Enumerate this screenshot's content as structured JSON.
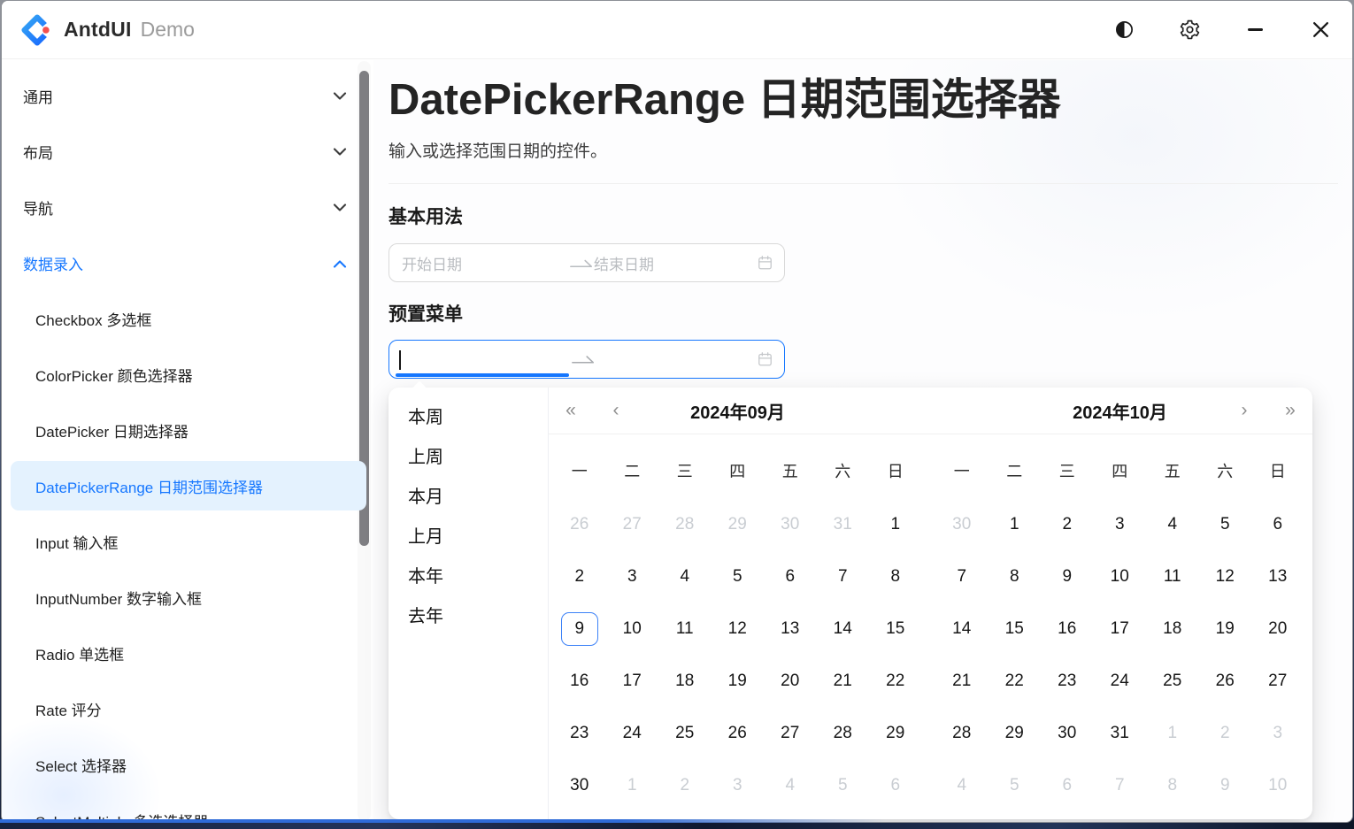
{
  "titlebar": {
    "app": "AntdUI",
    "mode": "Demo",
    "icons": {
      "theme_toggle": "◐",
      "settings": "⚙",
      "minimize": "—",
      "close": "✕"
    }
  },
  "sidebar": {
    "sections": [
      {
        "type": "group",
        "label": "通用",
        "state": "collapsed"
      },
      {
        "type": "group",
        "label": "布局",
        "state": "collapsed"
      },
      {
        "type": "group",
        "label": "导航",
        "state": "collapsed"
      },
      {
        "type": "group",
        "label": "数据录入",
        "state": "expanded",
        "active": true
      },
      {
        "type": "item",
        "label": "Checkbox 多选框"
      },
      {
        "type": "item",
        "label": "ColorPicker 颜色选择器"
      },
      {
        "type": "item",
        "label": "DatePicker 日期选择器"
      },
      {
        "type": "item",
        "label": "DatePickerRange 日期范围选择器",
        "active": true
      },
      {
        "type": "item",
        "label": "Input 输入框"
      },
      {
        "type": "item",
        "label": "InputNumber 数字输入框"
      },
      {
        "type": "item",
        "label": "Radio 单选框"
      },
      {
        "type": "item",
        "label": "Rate 评分"
      },
      {
        "type": "item",
        "label": "Select 选择器"
      },
      {
        "type": "item",
        "label": "SelectMultiple 多选选择器"
      }
    ]
  },
  "page": {
    "title": "DatePickerRange 日期范围选择器",
    "subtitle": "输入或选择范围日期的控件。",
    "section_basic": "基本用法",
    "section_preset": "预置菜单"
  },
  "basic_input": {
    "value": "",
    "start_placeholder": "开始日期",
    "end_placeholder": "结束日期"
  },
  "preset_input": {
    "value": "",
    "focused": true,
    "active_segment": "start"
  },
  "presets": [
    "本周",
    "上周",
    "本月",
    "上月",
    "本年",
    "去年"
  ],
  "calendar": {
    "nav": {
      "prev_year": "«",
      "prev_month": "‹",
      "next_month": "›",
      "next_year": "»"
    },
    "weekdays": [
      "一",
      "二",
      "三",
      "四",
      "五",
      "六",
      "日"
    ],
    "months": [
      {
        "title": "2024年09月",
        "rows": [
          [
            {
              "day": 26,
              "outside": true
            },
            {
              "day": 27,
              "outside": true
            },
            {
              "day": 28,
              "outside": true
            },
            {
              "day": 29,
              "outside": true
            },
            {
              "day": 30,
              "outside": true
            },
            {
              "day": 31,
              "outside": true
            },
            {
              "day": 1
            }
          ],
          [
            {
              "day": 2
            },
            {
              "day": 3
            },
            {
              "day": 4
            },
            {
              "day": 5
            },
            {
              "day": 6
            },
            {
              "day": 7
            },
            {
              "day": 8
            }
          ],
          [
            {
              "day": 9,
              "today": true
            },
            {
              "day": 10
            },
            {
              "day": 11
            },
            {
              "day": 12
            },
            {
              "day": 13
            },
            {
              "day": 14
            },
            {
              "day": 15
            }
          ],
          [
            {
              "day": 16
            },
            {
              "day": 17
            },
            {
              "day": 18
            },
            {
              "day": 19
            },
            {
              "day": 20
            },
            {
              "day": 21
            },
            {
              "day": 22
            }
          ],
          [
            {
              "day": 23
            },
            {
              "day": 24
            },
            {
              "day": 25
            },
            {
              "day": 26
            },
            {
              "day": 27
            },
            {
              "day": 28
            },
            {
              "day": 29
            }
          ],
          [
            {
              "day": 30
            },
            {
              "day": 1,
              "outside": true
            },
            {
              "day": 2,
              "outside": true
            },
            {
              "day": 3,
              "outside": true
            },
            {
              "day": 4,
              "outside": true
            },
            {
              "day": 5,
              "outside": true
            },
            {
              "day": 6,
              "outside": true
            }
          ]
        ]
      },
      {
        "title": "2024年10月",
        "rows": [
          [
            {
              "day": 30,
              "outside": true
            },
            {
              "day": 1
            },
            {
              "day": 2
            },
            {
              "day": 3
            },
            {
              "day": 4
            },
            {
              "day": 5
            },
            {
              "day": 6
            }
          ],
          [
            {
              "day": 7
            },
            {
              "day": 8
            },
            {
              "day": 9
            },
            {
              "day": 10
            },
            {
              "day": 11
            },
            {
              "day": 12
            },
            {
              "day": 13
            }
          ],
          [
            {
              "day": 14
            },
            {
              "day": 15
            },
            {
              "day": 16
            },
            {
              "day": 17
            },
            {
              "day": 18
            },
            {
              "day": 19
            },
            {
              "day": 20
            }
          ],
          [
            {
              "day": 21
            },
            {
              "day": 22
            },
            {
              "day": 23
            },
            {
              "day": 24
            },
            {
              "day": 25
            },
            {
              "day": 26
            },
            {
              "day": 27
            }
          ],
          [
            {
              "day": 28
            },
            {
              "day": 29
            },
            {
              "day": 30
            },
            {
              "day": 31
            },
            {
              "day": 1,
              "outside": true
            },
            {
              "day": 2,
              "outside": true
            },
            {
              "day": 3,
              "outside": true
            }
          ],
          [
            {
              "day": 4,
              "outside": true
            },
            {
              "day": 5,
              "outside": true
            },
            {
              "day": 6,
              "outside": true
            },
            {
              "day": 7,
              "outside": true
            },
            {
              "day": 8,
              "outside": true
            },
            {
              "day": 9,
              "outside": true
            },
            {
              "day": 10,
              "outside": true
            }
          ]
        ]
      }
    ]
  },
  "theme": {
    "accent": "#1677ff",
    "active_item_bg": "#e4f2fe",
    "today_border": "#3d82f7",
    "muted_day_color": "#c9cdd2"
  }
}
